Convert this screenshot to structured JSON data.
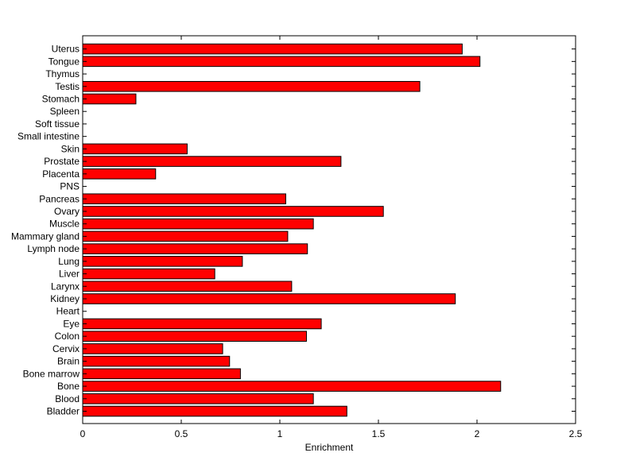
{
  "chart_data": {
    "type": "bar",
    "orientation": "horizontal",
    "title": "",
    "xlabel": "Enrichment",
    "ylabel": "",
    "xlim": [
      0,
      2.5
    ],
    "xticks": [
      "0",
      "0.5",
      "1",
      "1.5",
      "2",
      "2.5"
    ],
    "grid": false,
    "bar_color": "#ff0000",
    "edge_color": "#000000",
    "categories": [
      "Bladder",
      "Blood",
      "Bone",
      "Bone marrow",
      "Brain",
      "Cervix",
      "Colon",
      "Eye",
      "Heart",
      "Kidney",
      "Larynx",
      "Liver",
      "Lung",
      "Lymph node",
      "Mammary gland",
      "Muscle",
      "Ovary",
      "Pancreas",
      "PNS",
      "Placenta",
      "Prostate",
      "Skin",
      "Small intestine",
      "Soft tissue",
      "Spleen",
      "Stomach",
      "Testis",
      "Thymus",
      "Tongue",
      "Uterus"
    ],
    "values": [
      1.34,
      1.17,
      2.12,
      0.8,
      0.745,
      0.71,
      1.135,
      1.21,
      0,
      1.89,
      1.06,
      0.67,
      0.81,
      1.14,
      1.04,
      1.17,
      1.525,
      1.03,
      0,
      0.37,
      1.31,
      0.53,
      0,
      0,
      0,
      0.27,
      1.71,
      0,
      2.015,
      1.925
    ]
  }
}
